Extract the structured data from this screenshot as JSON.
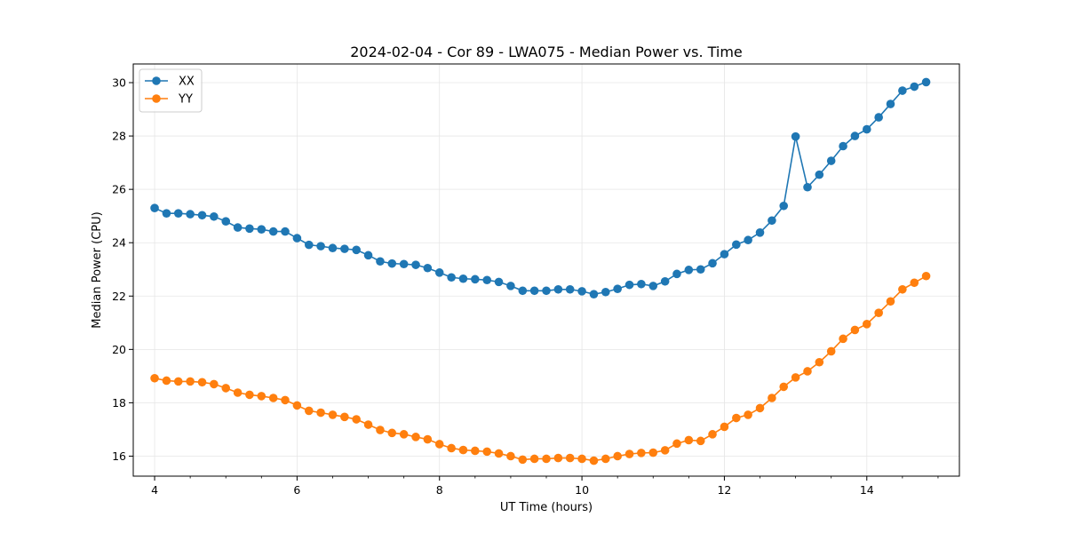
{
  "chart_data": {
    "type": "line",
    "title": "2024-02-04 - Cor 89 - LWA075 - Median Power vs. Time",
    "xlabel": "UT Time (hours)",
    "ylabel": "Median Power (CPU)",
    "xlim": [
      3.7,
      15.3
    ],
    "ylim": [
      15.25,
      30.7
    ],
    "xticks": [
      4,
      6,
      8,
      10,
      12,
      14
    ],
    "yticks": [
      16,
      18,
      20,
      22,
      24,
      26,
      28,
      30
    ],
    "grid": true,
    "legend_position": "top-left",
    "x": [
      4.0,
      4.167,
      4.333,
      4.5,
      4.667,
      4.833,
      5.0,
      5.167,
      5.333,
      5.5,
      5.667,
      5.833,
      6.0,
      6.167,
      6.333,
      6.5,
      6.667,
      6.833,
      7.0,
      7.167,
      7.333,
      7.5,
      7.667,
      7.833,
      8.0,
      8.167,
      8.333,
      8.5,
      8.667,
      8.833,
      9.0,
      9.167,
      9.333,
      9.5,
      9.667,
      9.833,
      10.0,
      10.167,
      10.333,
      10.5,
      10.667,
      10.833,
      11.0,
      11.167,
      11.333,
      11.5,
      11.667,
      11.833,
      12.0,
      12.167,
      12.333,
      12.5,
      12.667,
      12.833,
      13.0,
      13.167,
      13.333,
      13.5,
      13.667,
      13.833,
      14.0,
      14.167,
      14.333,
      14.5,
      14.667,
      14.833
    ],
    "series": [
      {
        "name": "XX",
        "color": "#1f77b4",
        "values": [
          25.3,
          25.1,
          25.1,
          25.07,
          25.03,
          24.98,
          24.8,
          24.57,
          24.53,
          24.5,
          24.42,
          24.42,
          24.17,
          23.92,
          23.87,
          23.8,
          23.77,
          23.73,
          23.53,
          23.3,
          23.22,
          23.2,
          23.17,
          23.05,
          22.88,
          22.7,
          22.65,
          22.63,
          22.6,
          22.53,
          22.38,
          22.2,
          22.2,
          22.2,
          22.25,
          22.25,
          22.18,
          22.07,
          22.15,
          22.27,
          22.42,
          22.45,
          22.38,
          22.55,
          22.83,
          22.98,
          23.0,
          23.23,
          23.57,
          23.93,
          24.1,
          24.38,
          24.83,
          25.38,
          27.98,
          26.08,
          26.55,
          27.07,
          27.62,
          28.0,
          28.25,
          28.7,
          29.2,
          29.7,
          29.85,
          30.02
        ]
      },
      {
        "name": "YY",
        "color": "#ff7f0e",
        "values": [
          18.92,
          18.83,
          18.8,
          18.8,
          18.77,
          18.7,
          18.55,
          18.38,
          18.3,
          18.25,
          18.18,
          18.1,
          17.9,
          17.7,
          17.63,
          17.55,
          17.47,
          17.38,
          17.18,
          16.98,
          16.87,
          16.82,
          16.72,
          16.63,
          16.45,
          16.3,
          16.23,
          16.2,
          16.17,
          16.1,
          16.0,
          15.87,
          15.9,
          15.9,
          15.93,
          15.93,
          15.9,
          15.83,
          15.9,
          16.0,
          16.08,
          16.12,
          16.13,
          16.22,
          16.47,
          16.6,
          16.57,
          16.82,
          17.1,
          17.43,
          17.55,
          17.8,
          18.18,
          18.6,
          18.95,
          19.18,
          19.52,
          19.93,
          20.4,
          20.73,
          20.95,
          21.37,
          21.8,
          22.25,
          22.5,
          22.75
        ]
      }
    ]
  }
}
